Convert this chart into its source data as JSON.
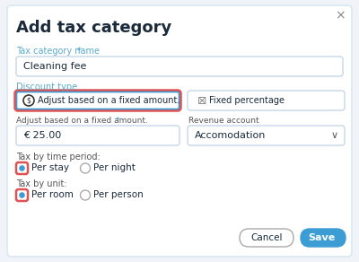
{
  "bg_color": "#f0f4f8",
  "dialog_bg": "#ffffff",
  "title": "Add tax category",
  "close_x": "×",
  "field1_label": "Tax category name",
  "field1_asterisk": " *",
  "field1_value": "Cleaning fee",
  "section2_label": "Discount type",
  "btn1_text": "Adjust based on a fixed amount.",
  "btn2_text": "Fixed percentage",
  "field2_label": "Adjust based on a fixed amount.",
  "field2_asterisk": " *",
  "field2_value": "€ 25.00",
  "field3_label": "Revenue account",
  "field3_value": "Accomodation",
  "radio1_label": "Tax by time period:",
  "radio1_opt1": "Per stay",
  "radio1_opt2": "Per night",
  "radio2_label": "Tax by unit:",
  "radio2_opt1": "Per room",
  "radio2_opt2": "Per person",
  "cancel_btn": "Cancel",
  "save_btn": "Save",
  "accent_color": "#3b9dd4",
  "red_outline": "#e05252",
  "label_color": "#5aaacc",
  "text_color": "#1a2a3a",
  "subtext_color": "#555555",
  "input_border": "#c5d8e8",
  "save_btn_color": "#3b9dd4",
  "dialog_border": "#d8e8f0",
  "light_blue_btn_border": "#3b9dd4"
}
